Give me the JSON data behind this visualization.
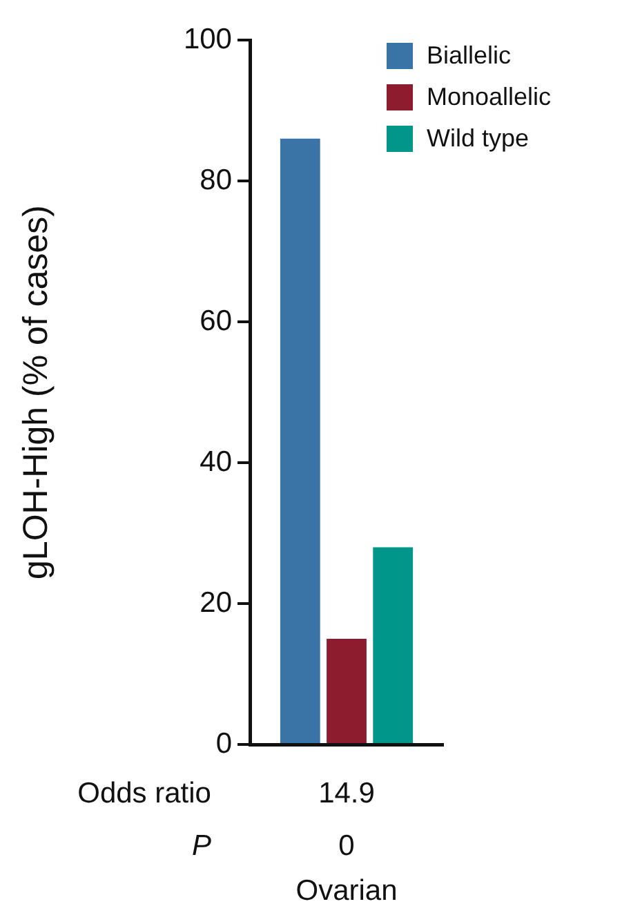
{
  "chart_data": {
    "type": "bar",
    "ylabel": "gLOH-High (% of cases)",
    "categories": [
      "Ovarian"
    ],
    "series": [
      {
        "name": "Biallelic",
        "color": "#3a73a5",
        "values": [
          86
        ]
      },
      {
        "name": "Monoallelic",
        "color": "#8c1c2e",
        "values": [
          15
        ]
      },
      {
        "name": "Wild type",
        "color": "#00968a",
        "values": [
          28
        ]
      }
    ],
    "ylim": [
      0,
      100
    ],
    "yticks": [
      0,
      20,
      40,
      60,
      80,
      100
    ],
    "grid": false,
    "legend": "top right",
    "annotations": [
      "Odds ratio",
      "14.9",
      "P",
      "0"
    ]
  }
}
